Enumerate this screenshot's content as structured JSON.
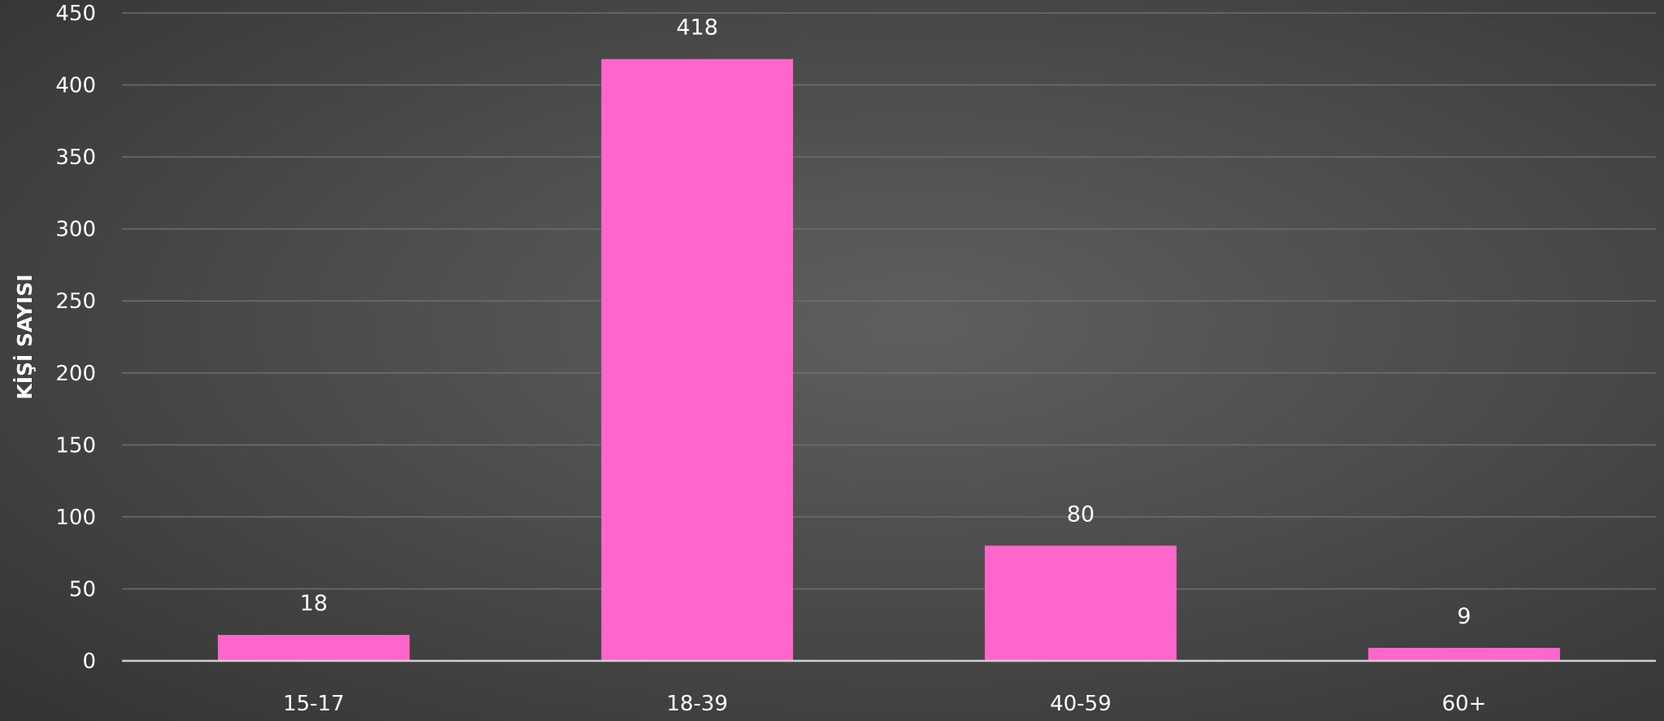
{
  "chart_data": {
    "type": "bar",
    "categories": [
      "15-17",
      "18-39",
      "40-59",
      "60+"
    ],
    "values": [
      18,
      418,
      80,
      9
    ],
    "data_labels": [
      "18",
      "418",
      "80",
      "9"
    ],
    "xlabel": "",
    "ylabel": "KİŞİ SAYISI",
    "ylim": [
      0,
      450
    ],
    "yticks": [
      0,
      50,
      100,
      150,
      200,
      250,
      300,
      350,
      400,
      450
    ],
    "grid": true,
    "legend": "none",
    "bar_color": "#ff66cc",
    "background_color": "#4a4a4a"
  }
}
